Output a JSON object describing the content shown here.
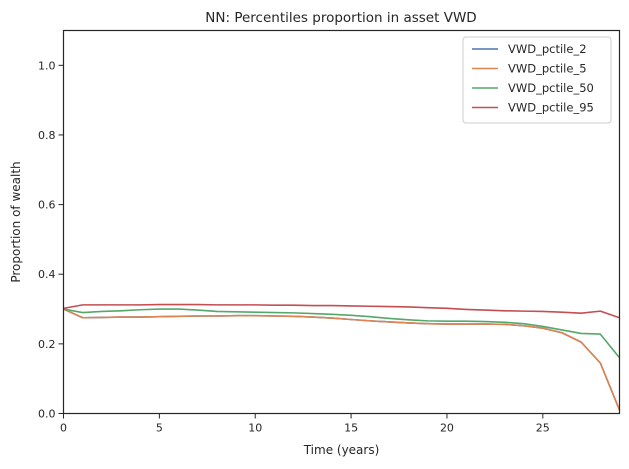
{
  "chart_data": {
    "type": "line",
    "title": "NN: Percentiles proportion in asset VWD",
    "xlabel": "Time (years)",
    "ylabel": "Proportion of wealth",
    "xlim": [
      0,
      29
    ],
    "ylim": [
      0,
      1.1
    ],
    "x_ticks": [
      0,
      5,
      10,
      15,
      20,
      25
    ],
    "y_ticks": [
      0.0,
      0.2,
      0.4,
      0.6,
      0.8,
      1.0
    ],
    "x_tick_labels": [
      "0",
      "5",
      "10",
      "15",
      "20",
      "25"
    ],
    "y_tick_labels": [
      "0.0",
      "0.2",
      "0.4",
      "0.6",
      "0.8",
      "1.0"
    ],
    "grid": false,
    "legend_position": "top-right",
    "x": [
      0,
      1,
      2,
      3,
      4,
      5,
      6,
      7,
      8,
      9,
      10,
      11,
      12,
      13,
      14,
      15,
      16,
      17,
      18,
      19,
      20,
      21,
      22,
      23,
      24,
      25,
      26,
      27,
      28,
      29
    ],
    "series": [
      {
        "name": "VWD_pctile_2",
        "color": "#4c72b0",
        "values": [
          0.3,
          0.275,
          0.276,
          0.277,
          0.277,
          0.278,
          0.279,
          0.28,
          0.28,
          0.281,
          0.281,
          0.28,
          0.279,
          0.277,
          0.274,
          0.27,
          0.266,
          0.263,
          0.26,
          0.258,
          0.257,
          0.257,
          0.257,
          0.256,
          0.252,
          0.245,
          0.232,
          0.205,
          0.145,
          0.01
        ]
      },
      {
        "name": "VWD_pctile_5",
        "color": "#dd8452",
        "values": [
          0.3,
          0.275,
          0.276,
          0.277,
          0.277,
          0.278,
          0.279,
          0.28,
          0.28,
          0.281,
          0.281,
          0.28,
          0.279,
          0.277,
          0.274,
          0.27,
          0.266,
          0.263,
          0.26,
          0.258,
          0.257,
          0.257,
          0.257,
          0.256,
          0.252,
          0.245,
          0.232,
          0.205,
          0.145,
          0.01
        ]
      },
      {
        "name": "VWD_pctile_50",
        "color": "#55a868",
        "values": [
          0.3,
          0.29,
          0.293,
          0.295,
          0.298,
          0.3,
          0.3,
          0.297,
          0.293,
          0.292,
          0.291,
          0.29,
          0.289,
          0.287,
          0.285,
          0.282,
          0.278,
          0.273,
          0.269,
          0.266,
          0.265,
          0.265,
          0.264,
          0.262,
          0.258,
          0.25,
          0.24,
          0.23,
          0.228,
          0.16
        ]
      },
      {
        "name": "VWD_pctile_95",
        "color": "#c44e52",
        "values": [
          0.302,
          0.312,
          0.312,
          0.312,
          0.312,
          0.313,
          0.313,
          0.313,
          0.312,
          0.312,
          0.312,
          0.311,
          0.311,
          0.31,
          0.31,
          0.309,
          0.308,
          0.307,
          0.306,
          0.304,
          0.302,
          0.299,
          0.297,
          0.295,
          0.294,
          0.293,
          0.291,
          0.288,
          0.294,
          0.275
        ]
      }
    ]
  }
}
